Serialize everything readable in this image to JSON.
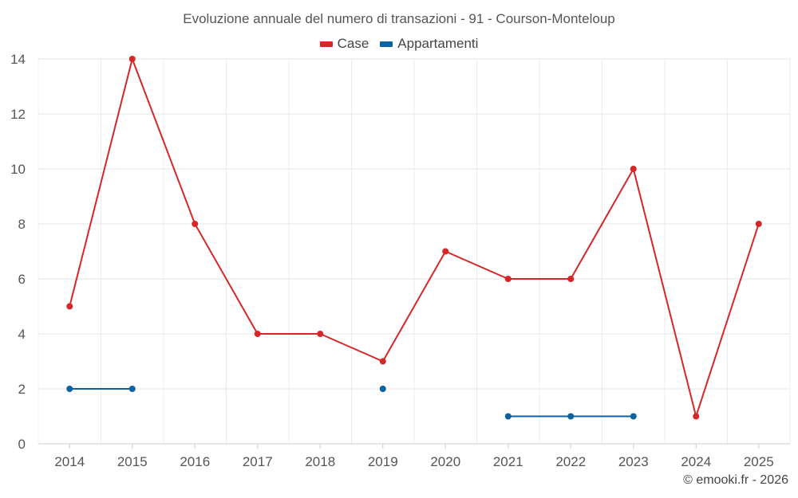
{
  "chart_data": {
    "type": "line",
    "title": "Evoluzione annuale del numero di transazioni - 91 - Courson-Monteloup",
    "xlabel": "",
    "ylabel": "",
    "categories": [
      "2014",
      "2015",
      "2016",
      "2017",
      "2018",
      "2019",
      "2020",
      "2021",
      "2022",
      "2023",
      "2024",
      "2025"
    ],
    "ylim": [
      0,
      14
    ],
    "yticks": [
      0,
      2,
      4,
      6,
      8,
      10,
      12,
      14
    ],
    "grid": true,
    "legend_position": "top-center",
    "series": [
      {
        "name": "Case",
        "color": "#d62728",
        "values": [
          5,
          14,
          8,
          4,
          4,
          3,
          7,
          6,
          6,
          10,
          1,
          8
        ]
      },
      {
        "name": "Appartamenti",
        "color": "#0d62a0",
        "values": [
          2,
          2,
          null,
          null,
          null,
          2,
          null,
          1,
          1,
          1,
          null,
          null
        ]
      }
    ]
  },
  "credit": "© emooki.fr - 2026"
}
